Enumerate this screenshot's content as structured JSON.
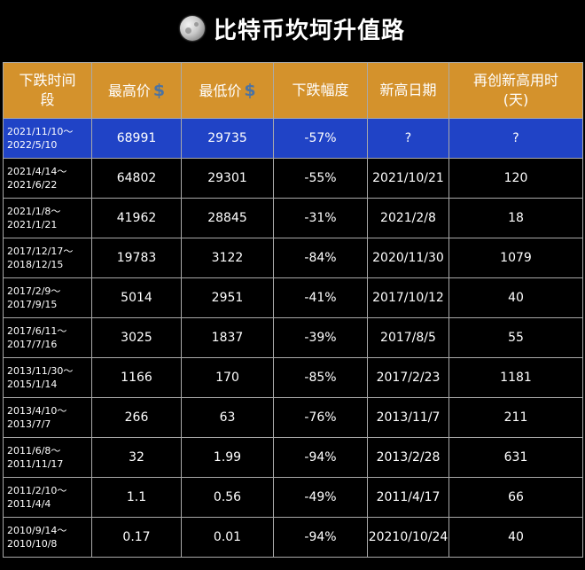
{
  "title": "比特币坎坷升值路",
  "icon": "moon-icon",
  "colors": {
    "header_bg": "#d4922c",
    "highlight_row": "#2043c6",
    "background": "#000000",
    "dollar_sign": "#4b73a3"
  },
  "chart_data": {
    "type": "table",
    "title": "比特币坎坷升值路",
    "columns": [
      "下跌时间段",
      "最高价",
      "最低价",
      "下跌幅度",
      "新高日期",
      "再创新高用时（天）"
    ],
    "header": {
      "period_line1": "下跌时间",
      "period_line2": "段",
      "high": "最高价",
      "low": "最低价",
      "drop": "下跌幅度",
      "newhigh": "新高日期",
      "days_line1": "再创新高用时",
      "days_line2": "(天)",
      "dollar": "$"
    },
    "rows": [
      {
        "start": "2021/11/10～",
        "end": "2022/5/10",
        "high": "68991",
        "low": "29735",
        "drop": "-57%",
        "new_high_date": "?",
        "days": "?"
      },
      {
        "start": "2021/4/14～",
        "end": "2021/6/22",
        "high": "64802",
        "low": "29301",
        "drop": "-55%",
        "new_high_date": "2021/10/21",
        "days": "120"
      },
      {
        "start": "2021/1/8～",
        "end": "2021/1/21",
        "high": "41962",
        "low": "28845",
        "drop": "-31%",
        "new_high_date": "2021/2/8",
        "days": "18"
      },
      {
        "start": "2017/12/17～",
        "end": "2018/12/15",
        "high": "19783",
        "low": "3122",
        "drop": "-84%",
        "new_high_date": "2020/11/30",
        "days": "1079"
      },
      {
        "start": "2017/2/9～",
        "end": "2017/9/15",
        "high": "5014",
        "low": "2951",
        "drop": "-41%",
        "new_high_date": "2017/10/12",
        "days": "40"
      },
      {
        "start": "2017/6/11～",
        "end": "2017/7/16",
        "high": "3025",
        "low": "1837",
        "drop": "-39%",
        "new_high_date": "2017/8/5",
        "days": "55"
      },
      {
        "start": "2013/11/30～",
        "end": "2015/1/14",
        "high": "1166",
        "low": "170",
        "drop": "-85%",
        "new_high_date": "2017/2/23",
        "days": "1181"
      },
      {
        "start": "2013/4/10～",
        "end": "2013/7/7",
        "high": "266",
        "low": "63",
        "drop": "-76%",
        "new_high_date": "2013/11/7",
        "days": "211"
      },
      {
        "start": "2011/6/8～",
        "end": "2011/11/17",
        "high": "32",
        "low": "1.99",
        "drop": "-94%",
        "new_high_date": "2013/2/28",
        "days": "631"
      },
      {
        "start": "2011/2/10～",
        "end": "2011/4/4",
        "high": "1.1",
        "low": "0.56",
        "drop": "-49%",
        "new_high_date": "2011/4/17",
        "days": "66"
      },
      {
        "start": "2010/9/14～",
        "end": "2010/10/8",
        "high": "0.17",
        "low": "0.01",
        "drop": "-94%",
        "new_high_date": "20210/10/24",
        "days": "40"
      }
    ]
  }
}
